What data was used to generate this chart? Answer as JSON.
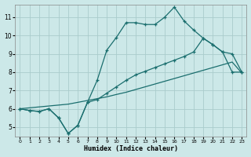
{
  "xlabel": "Humidex (Indice chaleur)",
  "bg_color": "#cce8e8",
  "grid_color": "#aacccc",
  "line_color": "#1a6e6e",
  "xlim": [
    -0.5,
    23.5
  ],
  "ylim": [
    4.5,
    11.7
  ],
  "xticks": [
    0,
    1,
    2,
    3,
    4,
    5,
    6,
    7,
    8,
    9,
    10,
    11,
    12,
    13,
    14,
    15,
    16,
    17,
    18,
    19,
    20,
    21,
    22,
    23
  ],
  "yticks": [
    5,
    6,
    7,
    8,
    9,
    10,
    11
  ],
  "line1_x": [
    0,
    1,
    2,
    3,
    4,
    5,
    6,
    7,
    8,
    9,
    10,
    11,
    12,
    13,
    14,
    15,
    16,
    17,
    18,
    19,
    20,
    21,
    22,
    23
  ],
  "line1_y": [
    6.0,
    5.9,
    5.85,
    6.0,
    5.5,
    4.65,
    5.1,
    6.35,
    7.55,
    9.2,
    9.9,
    10.7,
    10.7,
    10.6,
    10.6,
    11.0,
    11.55,
    10.8,
    10.3,
    9.85,
    9.5,
    9.1,
    8.0,
    8.0
  ],
  "line2_x": [
    0,
    1,
    2,
    3,
    4,
    5,
    6,
    7,
    8,
    9,
    10,
    11,
    12,
    13,
    14,
    15,
    16,
    17,
    18,
    19,
    20,
    21,
    22,
    23
  ],
  "line2_y": [
    6.0,
    5.9,
    5.85,
    6.0,
    5.5,
    4.65,
    5.1,
    6.35,
    6.5,
    6.85,
    7.2,
    7.55,
    7.85,
    8.05,
    8.25,
    8.45,
    8.65,
    8.85,
    9.1,
    9.85,
    9.5,
    9.1,
    9.0,
    8.0
  ],
  "line3_x": [
    0,
    1,
    2,
    3,
    4,
    5,
    6,
    7,
    8,
    9,
    10,
    11,
    12,
    13,
    14,
    15,
    16,
    17,
    18,
    19,
    20,
    21,
    22,
    23
  ],
  "line3_y": [
    6.0,
    6.05,
    6.1,
    6.15,
    6.2,
    6.25,
    6.35,
    6.45,
    6.55,
    6.65,
    6.78,
    6.9,
    7.05,
    7.2,
    7.35,
    7.5,
    7.65,
    7.8,
    7.95,
    8.1,
    8.25,
    8.4,
    8.55,
    7.95
  ]
}
